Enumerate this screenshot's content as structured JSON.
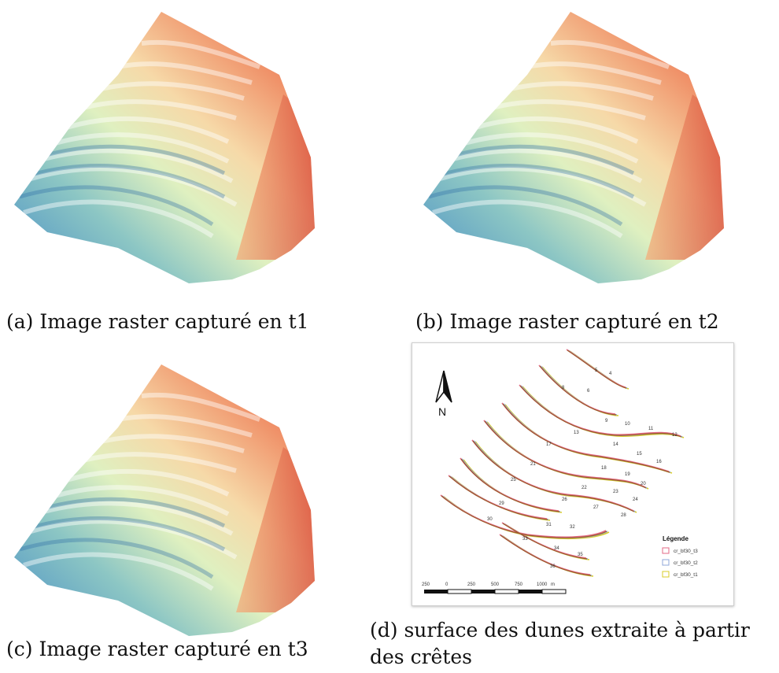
{
  "figures": [
    {
      "id": "a",
      "caption": "(a) Image raster capturé en t1"
    },
    {
      "id": "b",
      "caption": "(b) Image raster capturé en t2"
    },
    {
      "id": "c",
      "caption": "(c) Image raster capturé en t3"
    },
    {
      "id": "d",
      "caption": "(d) surface des dunes extraite à partir des crêtes"
    }
  ],
  "map": {
    "north_label": "N",
    "legend": {
      "title": "Légende",
      "items": [
        {
          "label": "cr_bf30_t3",
          "color": "#e36a86"
        },
        {
          "label": "cr_bf30_t2",
          "color": "#8fa7d8"
        },
        {
          "label": "cr_bf30_t1",
          "color": "#d8cc2a"
        }
      ]
    },
    "scale_labels": [
      "250",
      "0",
      "250",
      "500",
      "750",
      "1000",
      "m"
    ],
    "dune_numbers": [
      "5",
      "4",
      "8",
      "6",
      "9",
      "10",
      "11",
      "12",
      "13",
      "14",
      "15",
      "16",
      "17",
      "18",
      "19",
      "20",
      "21",
      "22",
      "23",
      "24",
      "25",
      "26",
      "27",
      "28",
      "29",
      "30",
      "31",
      "32",
      "33",
      "34",
      "35",
      "36"
    ]
  },
  "colors": {
    "raster_low": "#3f86c6",
    "raster_mid": "#f6efb4",
    "raster_high": "#e24c36"
  }
}
